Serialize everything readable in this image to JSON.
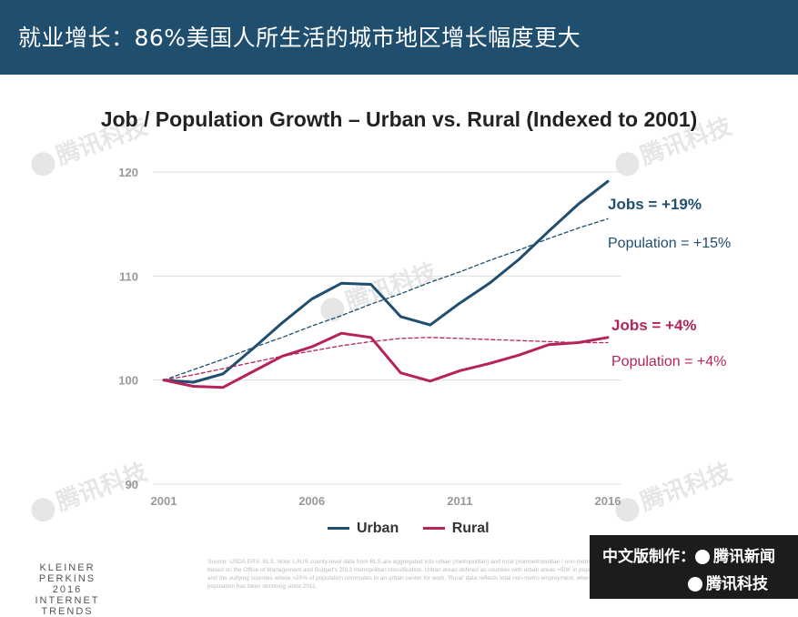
{
  "header": {
    "title": "就业增长：86%美国人所生活的城市地区增长幅度更大"
  },
  "watermark": {
    "text": "腾讯科技"
  },
  "chart_data": {
    "type": "line",
    "title": "Job / Population Growth – Urban vs. Rural (Indexed to 2001)",
    "xlabel": "",
    "ylabel": "",
    "xlim": [
      2001,
      2016
    ],
    "ylim": [
      90,
      120
    ],
    "x_ticks": [
      "2001",
      "2006",
      "2011",
      "2016"
    ],
    "y_ticks": [
      "120",
      "110",
      "100",
      "90"
    ],
    "x": [
      2001,
      2002,
      2003,
      2004,
      2005,
      2006,
      2007,
      2008,
      2009,
      2010,
      2011,
      2012,
      2013,
      2014,
      2015,
      2016
    ],
    "series": [
      {
        "name": "Urban",
        "color": "#1f4e6e",
        "style": "solid",
        "values": [
          100,
          99.8,
          100.6,
          103,
          105.5,
          107.8,
          109.3,
          109.2,
          106.1,
          105.3,
          107.4,
          109.3,
          111.6,
          114.3,
          116.9,
          119.1
        ]
      },
      {
        "name": "Rural",
        "color": "#b5235a",
        "style": "solid",
        "values": [
          100,
          99.4,
          99.3,
          100.8,
          102.3,
          103.2,
          104.5,
          104.1,
          100.7,
          99.9,
          100.9,
          101.6,
          102.4,
          103.4,
          103.6,
          104.1
        ]
      },
      {
        "name": "",
        "color": "#1f4e6e",
        "style": "dashed",
        "values": [
          100,
          101,
          102,
          103.1,
          104.1,
          105.2,
          106.2,
          107.3,
          108.3,
          109.4,
          110.4,
          111.5,
          112.5,
          113.6,
          114.6,
          115.5
        ]
      },
      {
        "name": "",
        "color": "#b5235a",
        "style": "dashed",
        "values": [
          100,
          100.5,
          101.1,
          101.7,
          102.3,
          102.8,
          103.3,
          103.7,
          104,
          104.1,
          104,
          103.9,
          103.8,
          103.7,
          103.6,
          103.6
        ]
      }
    ],
    "annotations": [
      {
        "text": "Jobs = +19%",
        "color": "#1f4e6e",
        "bold": true
      },
      {
        "text": "Population = +15%",
        "color": "#1f4e6e",
        "bold": false
      },
      {
        "text": "Jobs = +4%",
        "color": "#b5235a",
        "bold": true
      },
      {
        "text": "Population = +4%",
        "color": "#b5235a",
        "bold": false
      }
    ],
    "legend": [
      {
        "label": "Urban",
        "color": "#1f4e6e"
      },
      {
        "label": "Rural",
        "color": "#b5235a"
      }
    ],
    "legend_position": "bottom",
    "grid": true
  },
  "footer": {
    "logo_lines": [
      "KLEINER PERKINS",
      "2016",
      "INTERNET TRENDS"
    ],
    "source": "Source: USDA ERS, BLS. Note: LAUS county-level data from BLS are aggregated into urban (metropolitan) and rural (nonmetropolitan / non-metro), based on the Office of Management and Budget's 2013 metropolitan classification. Urban areas defined as counties with urban areas >50K in population, and the outlying counties where >25% of population commutes to an urban center for work. 'Rural' data reflects total non-metro employment, where population has been declining since 2011.",
    "badge_line1": "中文版制作：",
    "badge_name1": "腾讯新闻",
    "badge_name2": "腾讯科技"
  }
}
